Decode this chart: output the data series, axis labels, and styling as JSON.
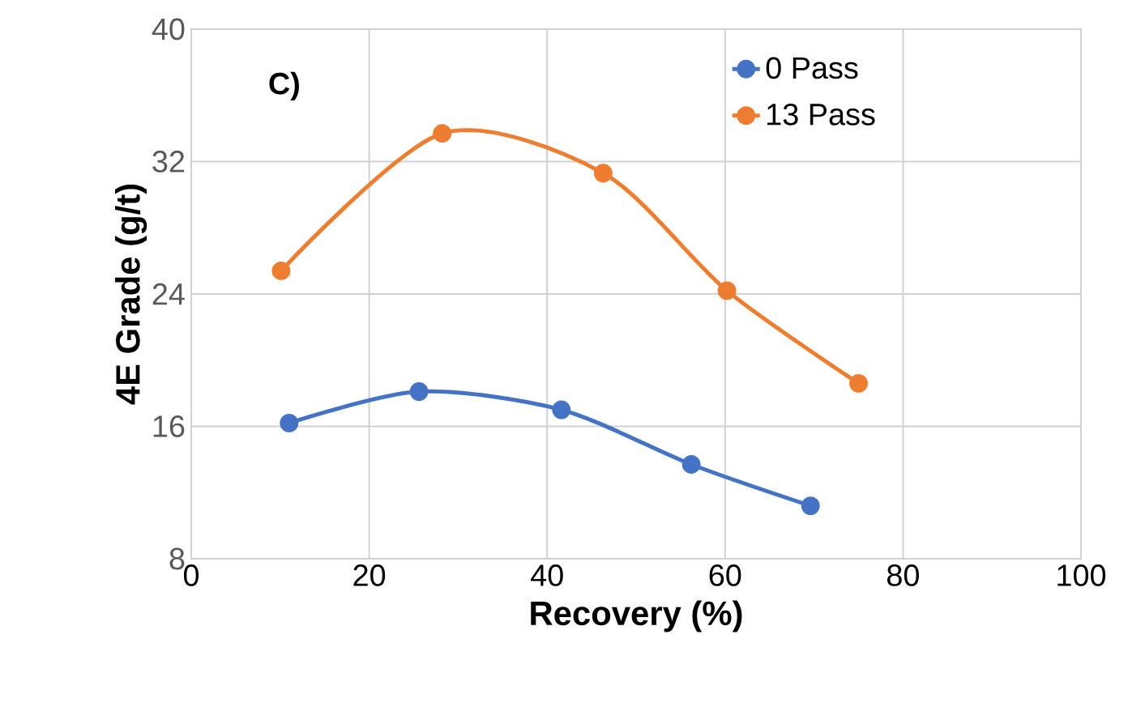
{
  "chart_data": {
    "type": "line",
    "xlabel": "Recovery (%)",
    "ylabel": "4E Grade (g/t)",
    "annotations": [
      "C)"
    ],
    "xlim": [
      0,
      100
    ],
    "xticks": [
      0,
      20,
      40,
      60,
      80,
      100
    ],
    "ylim": [
      8,
      40
    ],
    "yticks": [
      8,
      16,
      24,
      32,
      40
    ],
    "grid": true,
    "legend": "top right",
    "marker": "circle",
    "line_style": "solid",
    "series": [
      {
        "name": "0 Pass",
        "color": "#4472c4",
        "x": [
          11.0,
          25.6,
          41.6,
          56.2,
          69.6
        ],
        "values": [
          16.2,
          18.1,
          17.0,
          13.7,
          11.2
        ]
      },
      {
        "name": "13 Pass",
        "color": "#ed7d31",
        "x": [
          10.1,
          28.2,
          46.3,
          60.2,
          75.0
        ],
        "values": [
          25.4,
          33.7,
          31.3,
          24.2,
          18.6
        ]
      }
    ]
  }
}
